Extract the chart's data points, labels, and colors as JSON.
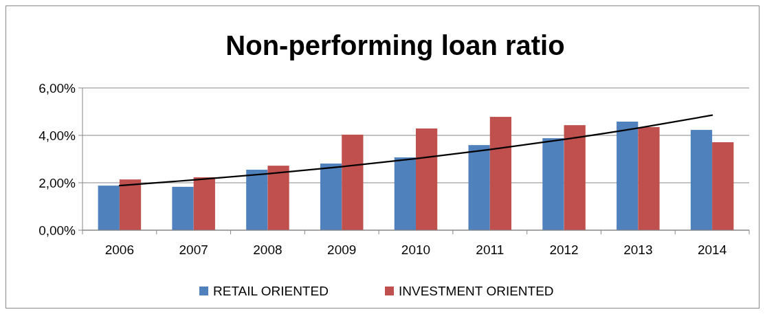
{
  "chart_data": {
    "type": "bar",
    "title": "Non-performing loan ratio",
    "categories": [
      "2006",
      "2007",
      "2008",
      "2009",
      "2010",
      "2011",
      "2012",
      "2013",
      "2014"
    ],
    "series": [
      {
        "name": "RETAIL ORIENTED",
        "color": "#4f81bd",
        "values": [
          1.88,
          1.83,
          2.55,
          2.81,
          3.07,
          3.59,
          3.88,
          4.58,
          4.23
        ]
      },
      {
        "name": "INVESTMENT ORIENTED",
        "color": "#c0504d",
        "values": [
          2.14,
          2.23,
          2.72,
          4.03,
          4.29,
          4.78,
          4.43,
          4.35,
          3.71
        ]
      },
      {
        "type": "line",
        "color": "#000000",
        "values": [
          1.88,
          2.12,
          2.38,
          2.68,
          3.02,
          3.4,
          3.83,
          4.31,
          4.85
        ]
      }
    ],
    "ylim": [
      0,
      6
    ],
    "yticks": [
      {
        "value": 0,
        "label": "0,00%"
      },
      {
        "value": 2,
        "label": "2,00%"
      },
      {
        "value": 4,
        "label": "4,00%"
      },
      {
        "value": 6,
        "label": "6,00%"
      }
    ],
    "grid": "y",
    "legend": "bottom"
  }
}
